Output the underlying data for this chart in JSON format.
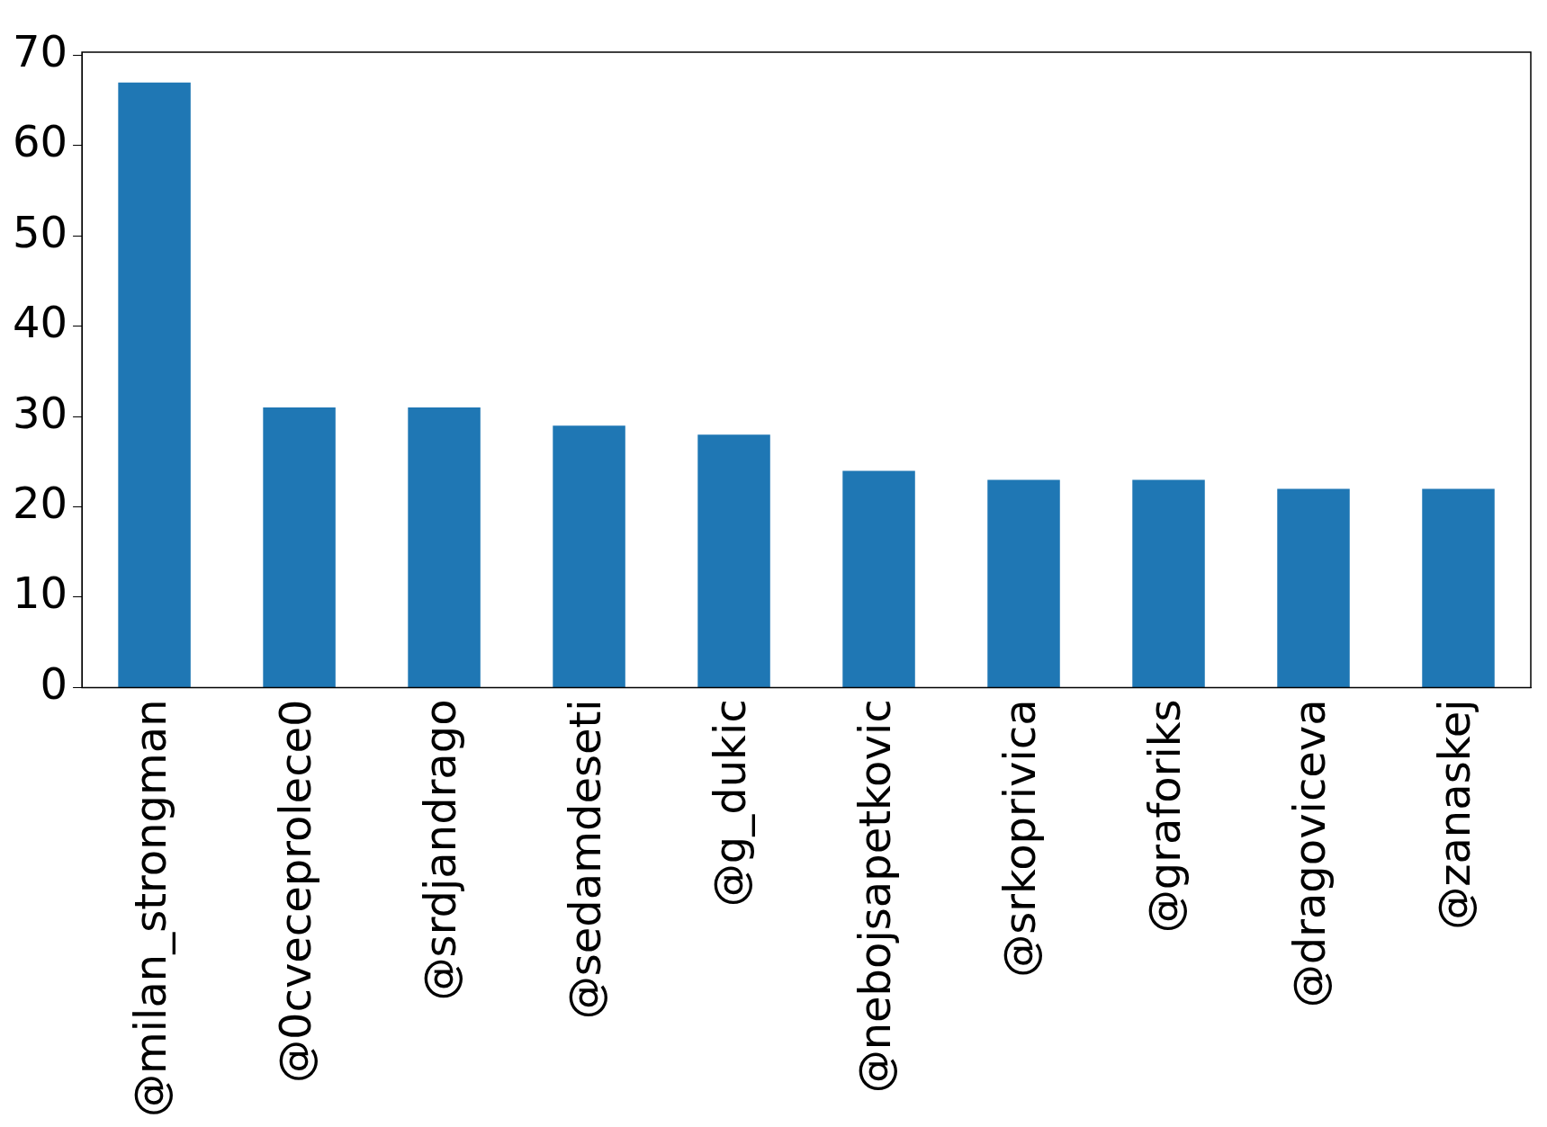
{
  "chart_data": {
    "type": "bar",
    "categories": [
      "@milan_strongman",
      "@0cveceprolece0",
      "@srdjandrago",
      "@sedamdeseti",
      "@g_dukic",
      "@nebojsapetkovic",
      "@srkoprivica",
      "@graforiks",
      "@dragoviceva",
      "@zanaskej"
    ],
    "values": [
      67,
      31,
      31,
      29,
      28,
      24,
      23,
      23,
      22,
      22
    ],
    "color": "#1f77b4",
    "ylim": [
      0,
      70.35
    ],
    "yticks": [
      0,
      10,
      20,
      30,
      40,
      50,
      60,
      70
    ],
    "grid": false,
    "legend": false
  }
}
